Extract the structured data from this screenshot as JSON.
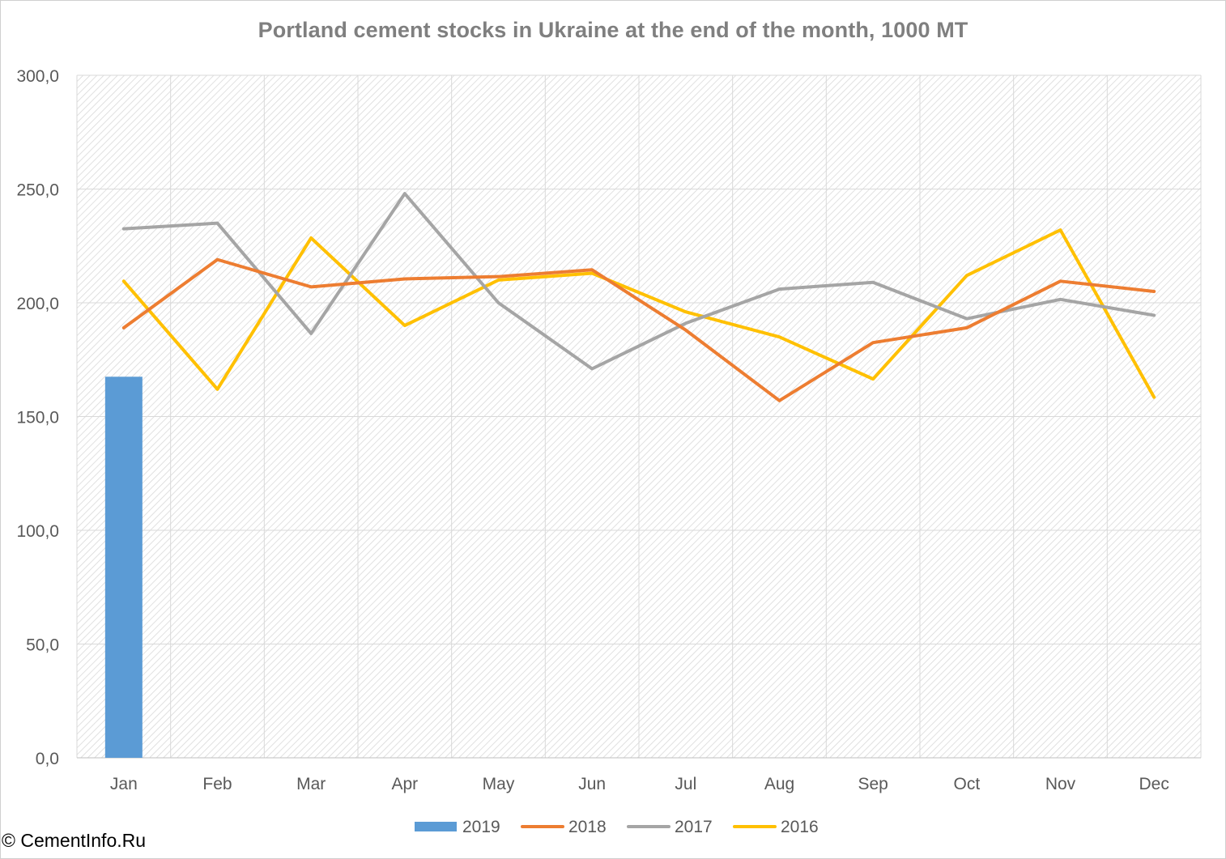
{
  "chart_data": {
    "type": "bar+line",
    "title": "Portland cement stocks in Ukraine at the end of the month, 1000 MT",
    "categories": [
      "Jan",
      "Feb",
      "Mar",
      "Apr",
      "May",
      "Jun",
      "Jul",
      "Aug",
      "Sep",
      "Oct",
      "Nov",
      "Dec"
    ],
    "series": [
      {
        "name": "2019",
        "kind": "bar",
        "color": "#5b9bd5",
        "values": [
          167.5,
          null,
          null,
          null,
          null,
          null,
          null,
          null,
          null,
          null,
          null,
          null
        ]
      },
      {
        "name": "2018",
        "kind": "line",
        "color": "#ed7d31",
        "values": [
          189.0,
          219.0,
          207.0,
          210.5,
          211.5,
          214.5,
          188.0,
          157.0,
          182.5,
          189.0,
          209.5,
          205.0
        ]
      },
      {
        "name": "2017",
        "kind": "line",
        "color": "#a5a5a5",
        "values": [
          232.5,
          235.0,
          186.5,
          248.0,
          200.0,
          171.0,
          191.0,
          206.0,
          209.0,
          193.0,
          201.5,
          194.5
        ]
      },
      {
        "name": "2016",
        "kind": "line",
        "color": "#ffc000",
        "values": [
          209.5,
          162.0,
          228.5,
          190.0,
          210.0,
          213.0,
          196.0,
          185.0,
          166.5,
          212.0,
          232.0,
          158.5
        ]
      }
    ],
    "ylim": [
      0,
      300
    ],
    "yticks": [
      "0,0",
      "50,0",
      "100,0",
      "150,0",
      "200,0",
      "250,0",
      "300,0"
    ],
    "grid": true,
    "legend_position": "bottom",
    "xlabel": "",
    "ylabel": ""
  },
  "copyright": "© CementInfo.Ru"
}
